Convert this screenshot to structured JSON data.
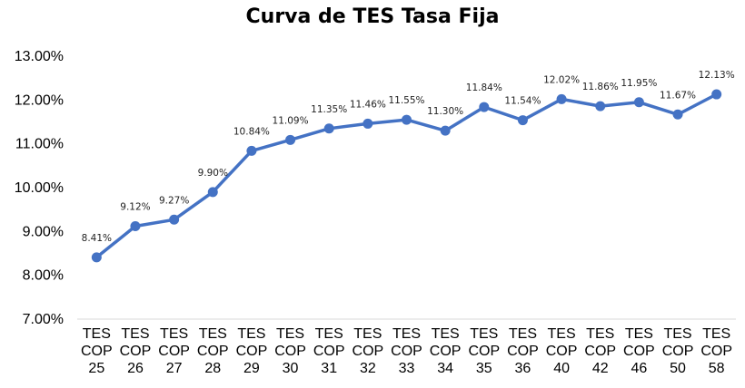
{
  "chart_data": {
    "type": "line",
    "title": "Curva de TES Tasa Fija",
    "xlabel": "",
    "ylabel": "",
    "categories": [
      [
        "TES",
        "COP",
        "25"
      ],
      [
        "TES",
        "COP",
        "26"
      ],
      [
        "TES",
        "COP",
        "27"
      ],
      [
        "TES",
        "COP",
        "28"
      ],
      [
        "TES",
        "COP",
        "29"
      ],
      [
        "TES",
        "COP",
        "30"
      ],
      [
        "TES",
        "COP",
        "31"
      ],
      [
        "TES",
        "COP",
        "32"
      ],
      [
        "TES",
        "COP",
        "33"
      ],
      [
        "TES",
        "COP",
        "34"
      ],
      [
        "TES",
        "COP",
        "35"
      ],
      [
        "TES",
        "COP",
        "36"
      ],
      [
        "TES",
        "COP",
        "40"
      ],
      [
        "TES",
        "COP",
        "42"
      ],
      [
        "TES",
        "COP",
        "46"
      ],
      [
        "TES",
        "COP",
        "50"
      ],
      [
        "TES",
        "COP",
        "58"
      ]
    ],
    "series": [
      {
        "values": [
          8.41,
          9.12,
          9.27,
          9.9,
          10.84,
          11.09,
          11.35,
          11.46,
          11.55,
          11.3,
          11.84,
          11.54,
          12.02,
          11.86,
          11.95,
          11.67,
          12.13
        ],
        "labels": [
          "8.41%",
          "9.12%",
          "9.27%",
          "9.90%",
          "10.84%",
          "11.09%",
          "11.35%",
          "11.46%",
          "11.55%",
          "11.30%",
          "11.84%",
          "11.54%",
          "12.02%",
          "11.86%",
          "11.95%",
          "11.67%",
          "12.13%"
        ],
        "color": "#4472C4"
      }
    ],
    "ylim": [
      7.0,
      13.0
    ],
    "yticks": [
      7.0,
      8.0,
      9.0,
      10.0,
      11.0,
      12.0,
      13.0
    ],
    "ytick_labels": [
      "7.00%",
      "8.00%",
      "9.00%",
      "10.00%",
      "11.00%",
      "12.00%",
      "13.00%"
    ],
    "grid": false,
    "legend": "none"
  }
}
